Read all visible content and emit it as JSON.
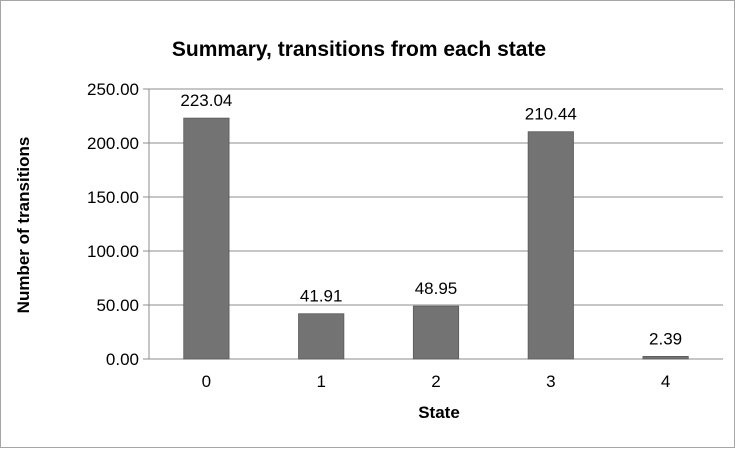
{
  "chart_data": {
    "type": "bar",
    "title": "Summary, transitions from each state",
    "xlabel": "State",
    "ylabel": "Number of transitions",
    "categories": [
      "0",
      "1",
      "2",
      "3",
      "4"
    ],
    "values": [
      223.04,
      41.91,
      48.95,
      210.44,
      2.39
    ],
    "value_labels": [
      "223.04",
      "41.91",
      "48.95",
      "210.44",
      "2.39"
    ],
    "ylim": [
      0,
      250
    ],
    "y_ticks": [
      0,
      50,
      100,
      150,
      200,
      250
    ],
    "y_tick_labels": [
      "0.00",
      "50.00",
      "100.00",
      "150.00",
      "200.00",
      "250.00"
    ],
    "grid": true,
    "legend": "none",
    "colors": {
      "bar": "#737373",
      "bar_edge": "#5a5a5a",
      "grid": "#8c8c8c",
      "axis": "#8c8c8c",
      "frame": "#a6a6a6"
    }
  }
}
